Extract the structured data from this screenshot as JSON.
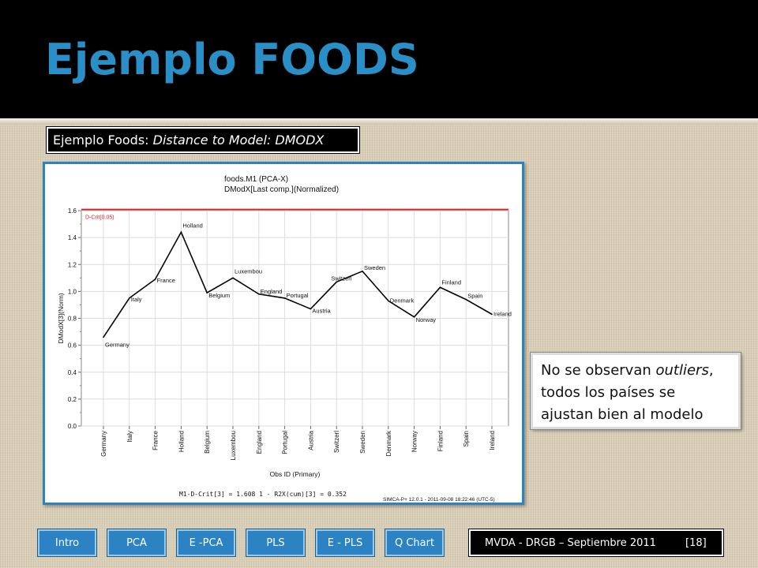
{
  "slide": {
    "title": "Ejemplo FOODS",
    "subtitle_plain": "Ejemplo Foods",
    "subtitle_sep": ": ",
    "subtitle_italic": "Distance to Model: DMODX",
    "note_pre": "No se observan ",
    "note_italic": "outliers",
    "note_post": ", todos los países se ajustan bien al modelo"
  },
  "nav": {
    "buttons": [
      "Intro",
      "PCA",
      "E -PCA",
      "PLS",
      "E - PLS",
      "Q Chart"
    ]
  },
  "footer": {
    "text": "MVDA  - DRGB – Septiembre 2011",
    "page": "[18]"
  },
  "colors": {
    "title": "#2a8fc6",
    "accent": "#2b83c4",
    "crit_line": "#e02020",
    "series_line": "#000000"
  },
  "chart_data": {
    "type": "line",
    "title": "foods.M1 (PCA-X)",
    "subtitle": "DModX[Last comp.](Normalized)",
    "xlabel": "Obs ID (Primary)",
    "ylabel": "DModX[3](Norm)",
    "ylim": [
      0,
      1.6
    ],
    "yticks": [
      "0.0",
      "0.2",
      "0.4",
      "0.6",
      "0.8",
      "1.0",
      "1.2",
      "1.4",
      "1.6"
    ],
    "categories": [
      "Germany",
      "Italy",
      "France",
      "Holland",
      "Belgium",
      "Luxembou",
      "England",
      "Portugal",
      "Austria",
      "Switzerl",
      "Sweden",
      "Denmark",
      "Norway",
      "Finland",
      "Spain",
      "Ireland"
    ],
    "values": [
      0.66,
      0.95,
      1.09,
      1.44,
      0.99,
      1.1,
      0.98,
      0.95,
      0.87,
      1.07,
      1.15,
      0.93,
      0.81,
      1.03,
      0.94,
      0.83
    ],
    "crit_label": "D-Crit(0.05)",
    "crit_value": 1.608,
    "footer_left": "M1-D-Crit[3] = 1.608     1 - R2X(cum)[3] = 0.352",
    "footer_right": "SIMCA-P+ 12.0.1 - 2011-09-08 18:22:46 (UTC-5)",
    "grid": true,
    "legend": "none"
  }
}
